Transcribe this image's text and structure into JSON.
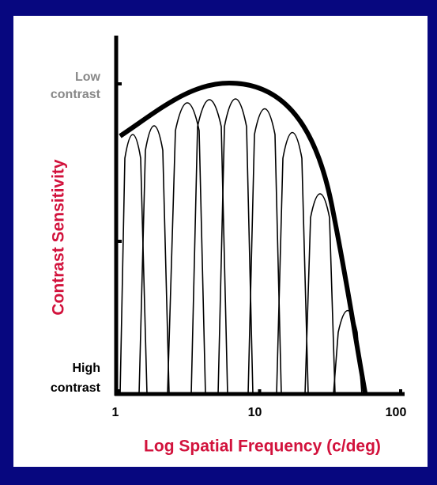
{
  "y_axis": {
    "label": "Contrast Sensitivity",
    "top_label": [
      "Low",
      "contrast"
    ],
    "bottom_label": [
      "High",
      "contrast"
    ]
  },
  "x_axis": {
    "label": "Log Spatial Frequency (c/deg)",
    "scale": "log",
    "xlim": [
      1,
      100
    ],
    "xticks": [
      1,
      10,
      100
    ]
  }
}
